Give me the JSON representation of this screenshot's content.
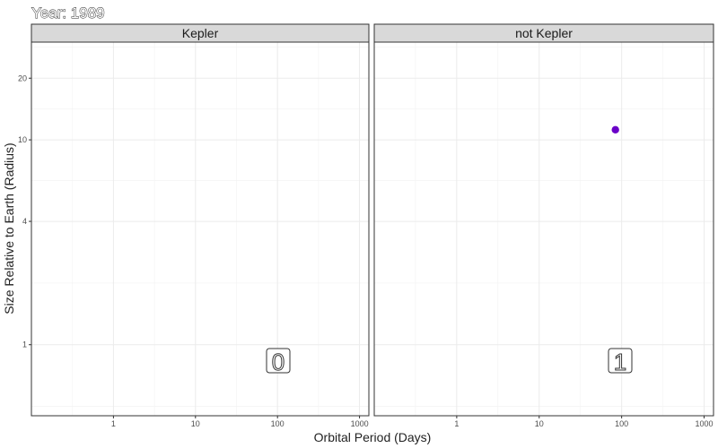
{
  "chart_data": {
    "type": "scatter",
    "title": "Year: 1989",
    "xlabel": "Orbital Period (Days)",
    "ylabel": "Size Relative to Earth (Radius)",
    "x_scale": "log10",
    "y_scale": "log10",
    "xlim": [
      0.1,
      1300
    ],
    "ylim": [
      0.45,
      30
    ],
    "x_ticks": [
      {
        "value": 1,
        "label": "1"
      },
      {
        "value": 10,
        "label": "10"
      },
      {
        "value": 100,
        "label": "100"
      },
      {
        "value": 1000,
        "label": "1000"
      }
    ],
    "y_ticks": [
      {
        "value": 1,
        "label": "1"
      },
      {
        "value": 4,
        "label": "4"
      },
      {
        "value": 10,
        "label": "10"
      },
      {
        "value": 20,
        "label": "20"
      }
    ],
    "grid": true,
    "point_color": "#6a00c8",
    "panels": [
      {
        "name": "Kepler",
        "count": "0",
        "points": []
      },
      {
        "name": "not Kepler",
        "count": "1",
        "points": [
          {
            "x": 84,
            "y": 11.2
          }
        ]
      }
    ]
  }
}
